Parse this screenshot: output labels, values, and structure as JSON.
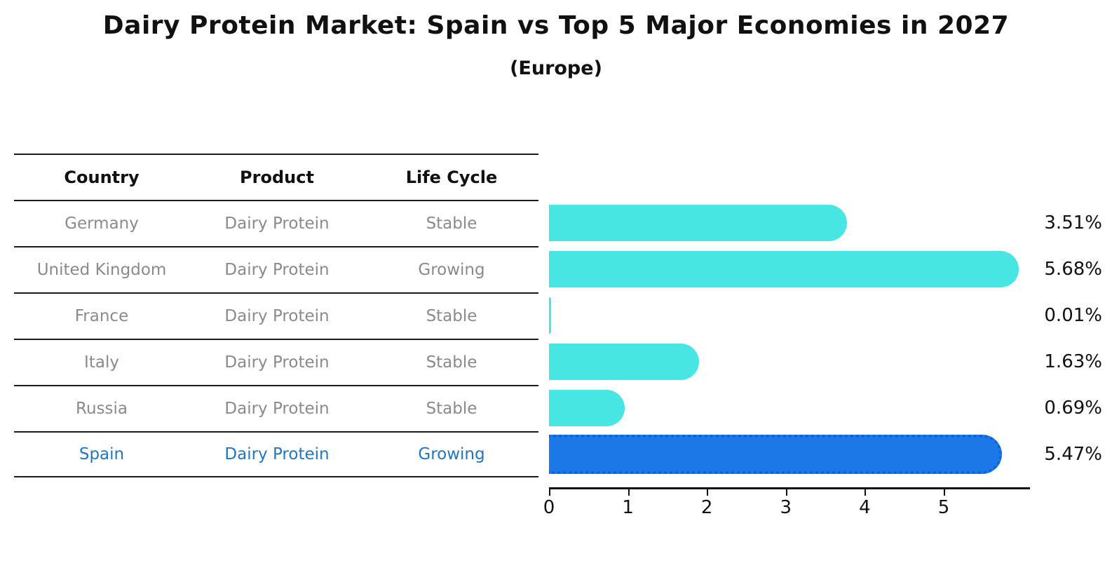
{
  "header": {
    "title": "Dairy Protein Market: Spain vs Top 5 Major Economies in 2027",
    "subtitle": "(Europe)"
  },
  "table": {
    "columns": [
      "Country",
      "Product",
      "Life Cycle"
    ],
    "rows": [
      {
        "country": "Germany",
        "product": "Dairy Protein",
        "life_cycle": "Stable",
        "highlighted": false
      },
      {
        "country": "United Kingdom",
        "product": "Dairy Protein",
        "life_cycle": "Growing",
        "highlighted": false
      },
      {
        "country": "France",
        "product": "Dairy Protein",
        "life_cycle": "Stable",
        "highlighted": false
      },
      {
        "country": "Italy",
        "product": "Dairy Protein",
        "life_cycle": "Stable",
        "highlighted": false
      },
      {
        "country": "Russia",
        "product": "Dairy Protein",
        "life_cycle": "Stable",
        "highlighted": false
      },
      {
        "country": "Spain",
        "product": "Dairy Protein",
        "life_cycle": "Growing",
        "highlighted": true
      }
    ]
  },
  "chart_data": {
    "type": "bar",
    "orientation": "horizontal",
    "title": "Dairy Protein Market: Spain vs Top 5 Major Economies in 2027",
    "subtitle": "(Europe)",
    "categories": [
      "Germany",
      "United Kingdom",
      "France",
      "Italy",
      "Russia",
      "Spain"
    ],
    "values": [
      3.51,
      5.68,
      0.01,
      1.63,
      0.69,
      5.47
    ],
    "value_labels": [
      "3.51%",
      "5.68%",
      "0.01%",
      "1.63%",
      "0.69%",
      "5.47%"
    ],
    "unit": "percent",
    "xticks": [
      0,
      1,
      2,
      3,
      4,
      5
    ],
    "xlim": [
      0,
      6.1
    ],
    "grid": false,
    "legend": "none",
    "bar_color": "#48e6e2",
    "highlight_color": "#1b78e6",
    "highlight_text_color": "#2176c5",
    "highlight_index": 5,
    "highlight_category": "Spain"
  }
}
